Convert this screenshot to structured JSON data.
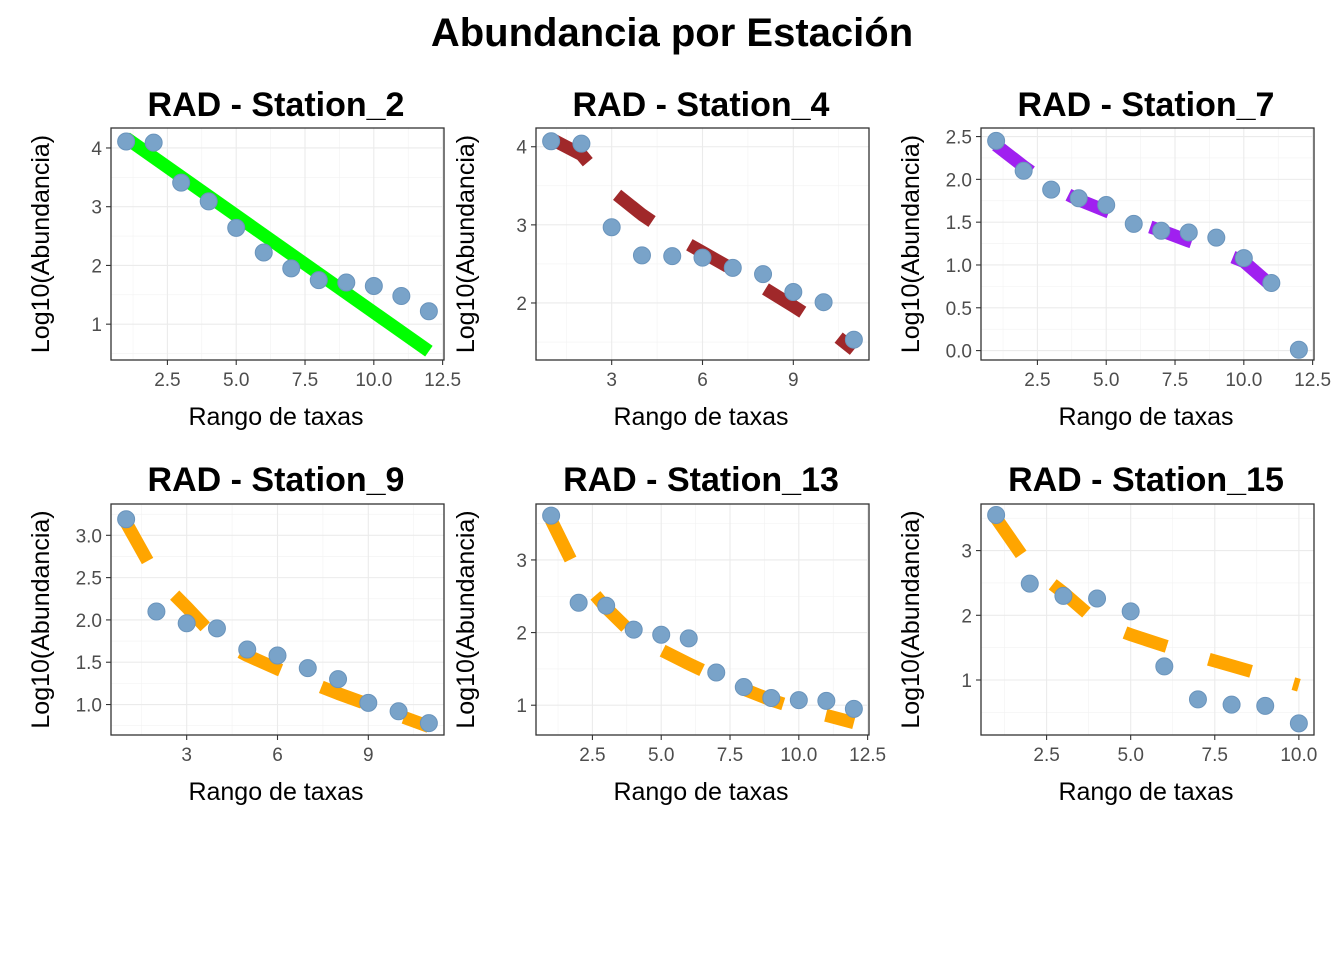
{
  "title": "Abundancia por Estación",
  "colors": {
    "points": "#79A3C9",
    "point_stroke": "#6A94BC"
  },
  "chart_data": [
    {
      "type": "scatter",
      "title": "RAD - Station_2",
      "xlabel": "Rango de taxas",
      "ylabel": "Log10(Abundancia)",
      "xlim": [
        0.45,
        12.55
      ],
      "ylim": [
        0.39,
        4.34
      ],
      "xticks": [
        2.5,
        5.0,
        7.5,
        10.0,
        12.5
      ],
      "xtick_labels": [
        "2.5",
        "5.0",
        "7.5",
        "10.0",
        "12.5"
      ],
      "yticks": [
        1,
        2,
        3,
        4
      ],
      "ytick_labels": [
        "1",
        "2",
        "3",
        "4"
      ],
      "grid": true,
      "series": [
        {
          "kind": "points",
          "x": [
            1,
            2,
            3,
            4,
            5,
            6,
            7,
            8,
            9,
            10,
            11,
            12
          ],
          "y": [
            4.11,
            4.09,
            3.41,
            3.09,
            2.64,
            2.22,
            1.95,
            1.75,
            1.71,
            1.65,
            1.48,
            1.22
          ]
        },
        {
          "kind": "fit",
          "color": "#00FF00",
          "dash": "solid",
          "x": [
            1,
            12
          ],
          "y": [
            4.17,
            0.54
          ]
        }
      ]
    },
    {
      "type": "scatter",
      "title": "RAD - Station_4",
      "xlabel": "Rango de taxas",
      "ylabel": "Log10(Abundancia)",
      "xlim": [
        0.5,
        11.5
      ],
      "ylim": [
        1.27,
        4.24
      ],
      "xticks": [
        3,
        6,
        9
      ],
      "xtick_labels": [
        "3",
        "6",
        "9"
      ],
      "yticks": [
        2,
        3,
        4
      ],
      "ytick_labels": [
        "2",
        "3",
        "4"
      ],
      "grid": true,
      "series": [
        {
          "kind": "points",
          "x": [
            1,
            2,
            3,
            4,
            5,
            6,
            7,
            8,
            9,
            10,
            11
          ],
          "y": [
            4.07,
            4.04,
            2.97,
            2.61,
            2.6,
            2.58,
            2.45,
            2.37,
            2.14,
            2.01,
            1.53
          ]
        },
        {
          "kind": "fit",
          "color": "#A0282A",
          "dash": "dashed",
          "x": [
            1,
            2,
            3,
            4,
            5,
            6,
            7,
            8,
            9,
            10,
            11
          ],
          "y": [
            4.1,
            3.9,
            3.44,
            3.13,
            2.87,
            2.65,
            2.43,
            2.2,
            1.96,
            1.71,
            1.4
          ]
        }
      ]
    },
    {
      "type": "scatter",
      "title": "RAD - Station_7",
      "xlabel": "Rango de taxas",
      "ylabel": "Log10(Abundancia)",
      "xlim": [
        0.45,
        12.55
      ],
      "ylim": [
        -0.11,
        2.6
      ],
      "xticks": [
        2.5,
        5.0,
        7.5,
        10.0,
        12.5
      ],
      "xtick_labels": [
        "2.5",
        "5.0",
        "7.5",
        "10.0",
        "12.5"
      ],
      "yticks": [
        0.0,
        0.5,
        1.0,
        1.5,
        2.0,
        2.5
      ],
      "ytick_labels": [
        "0.0",
        "0.5",
        "1.0",
        "1.5",
        "2.0",
        "2.5"
      ],
      "grid": true,
      "series": [
        {
          "kind": "points",
          "x": [
            1,
            2,
            3,
            4,
            5,
            6,
            7,
            8,
            9,
            10,
            11,
            12
          ],
          "y": [
            2.45,
            2.1,
            1.88,
            1.78,
            1.7,
            1.48,
            1.4,
            1.38,
            1.32,
            1.08,
            0.79,
            0.01
          ]
        },
        {
          "kind": "fit",
          "color": "#A020F0",
          "dash": "dashed",
          "x": [
            1,
            2,
            3,
            4,
            5,
            6,
            7,
            8,
            9,
            10,
            11
          ],
          "y": [
            2.4,
            2.15,
            1.92,
            1.76,
            1.63,
            1.51,
            1.4,
            1.28,
            1.17,
            1.04,
            0.76
          ]
        }
      ]
    },
    {
      "type": "scatter",
      "title": "RAD - Station_9",
      "xlabel": "Rango de taxas",
      "ylabel": "Log10(Abundancia)",
      "xlim": [
        0.5,
        11.5
      ],
      "ylim": [
        0.64,
        3.37
      ],
      "xticks": [
        3,
        6,
        9
      ],
      "xtick_labels": [
        "3",
        "6",
        "9"
      ],
      "yticks": [
        1.0,
        1.5,
        2.0,
        2.5,
        3.0
      ],
      "ytick_labels": [
        "1.0",
        "1.5",
        "2.0",
        "2.5",
        "3.0"
      ],
      "grid": true,
      "series": [
        {
          "kind": "points",
          "x": [
            1,
            2,
            3,
            4,
            5,
            6,
            7,
            8,
            9,
            10,
            11
          ],
          "y": [
            3.19,
            2.1,
            1.96,
            1.9,
            1.65,
            1.58,
            1.43,
            1.3,
            1.02,
            0.92,
            0.78
          ]
        },
        {
          "kind": "fit",
          "color": "#FFA500",
          "dash": "dashed",
          "x": [
            1,
            2,
            3,
            4,
            5,
            6,
            7,
            8,
            9,
            10,
            11
          ],
          "y": [
            3.15,
            2.51,
            2.15,
            1.77,
            1.58,
            1.42,
            1.27,
            1.13,
            1.0,
            0.87,
            0.74
          ]
        }
      ]
    },
    {
      "type": "scatter",
      "title": "RAD - Station_13",
      "xlabel": "Rango de taxas",
      "ylabel": "Log10(Abundancia)",
      "xlim": [
        0.45,
        12.55
      ],
      "ylim": [
        0.59,
        3.77
      ],
      "xticks": [
        2.5,
        5.0,
        7.5,
        10.0,
        12.5
      ],
      "xtick_labels": [
        "2.5",
        "5.0",
        "7.5",
        "10.0",
        "12.5"
      ],
      "yticks": [
        1,
        2,
        3
      ],
      "ytick_labels": [
        "1",
        "2",
        "3"
      ],
      "grid": true,
      "series": [
        {
          "kind": "points",
          "x": [
            1,
            2,
            3,
            4,
            5,
            6,
            7,
            8,
            9,
            10,
            11,
            12
          ],
          "y": [
            3.61,
            2.41,
            2.37,
            2.04,
            1.97,
            1.92,
            1.45,
            1.25,
            1.1,
            1.07,
            1.06,
            0.95
          ]
        },
        {
          "kind": "fit",
          "color": "#FFA500",
          "dash": "dashed",
          "x": [
            1,
            2,
            3,
            4,
            5,
            6,
            7,
            8,
            9,
            10,
            11,
            12
          ],
          "y": [
            3.55,
            2.78,
            2.34,
            1.97,
            1.76,
            1.57,
            1.39,
            1.22,
            1.07,
            0.95,
            0.86,
            0.76
          ]
        }
      ]
    },
    {
      "type": "scatter",
      "title": "RAD - Station_15",
      "xlabel": "Rango de taxas",
      "ylabel": "Log10(Abundancia)",
      "xlim": [
        0.55,
        10.45
      ],
      "ylim": [
        0.15,
        3.72
      ],
      "xticks": [
        2.5,
        5.0,
        7.5,
        10.0
      ],
      "xtick_labels": [
        "2.5",
        "5.0",
        "7.5",
        "10.0"
      ],
      "yticks": [
        1,
        2,
        3
      ],
      "ytick_labels": [
        "1",
        "2",
        "3"
      ],
      "grid": true,
      "series": [
        {
          "kind": "points",
          "x": [
            1,
            2,
            3,
            4,
            5,
            6,
            7,
            8,
            9,
            10
          ],
          "y": [
            3.55,
            2.49,
            2.3,
            2.26,
            2.06,
            1.21,
            0.7,
            0.62,
            0.6,
            0.33
          ]
        },
        {
          "kind": "fit",
          "color": "#FFA500",
          "dash": "dashed",
          "x": [
            1,
            2,
            3,
            4,
            5,
            6,
            7,
            8,
            9,
            10
          ],
          "y": [
            3.5,
            2.75,
            2.35,
            1.9,
            1.7,
            1.53,
            1.37,
            1.22,
            1.07,
            0.92
          ]
        }
      ]
    }
  ]
}
